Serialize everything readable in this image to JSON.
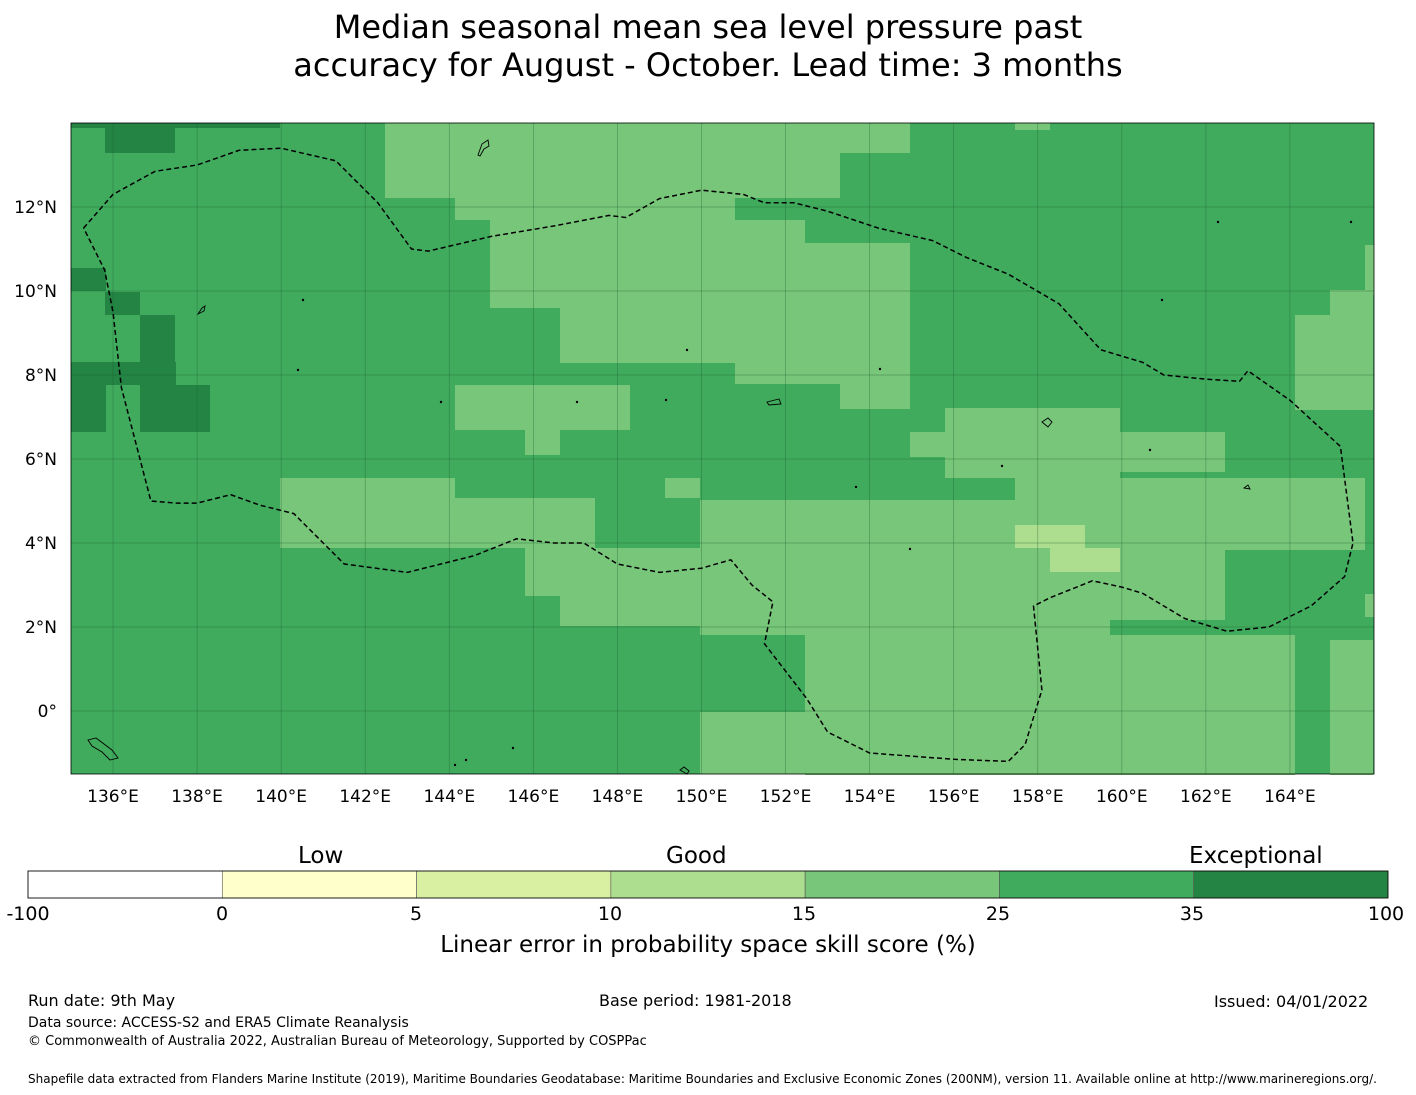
{
  "title_lines": [
    "Median seasonal mean sea level pressure past",
    "accuracy for August - October. Lead time: 3 months"
  ],
  "map": {
    "lon_range": [
      135,
      166
    ],
    "lat_range": [
      -1.5,
      14
    ],
    "lon_ticks": [
      {
        "value": 136,
        "label": "136°E"
      },
      {
        "value": 138,
        "label": "138°E"
      },
      {
        "value": 140,
        "label": "140°E"
      },
      {
        "value": 142,
        "label": "142°E"
      },
      {
        "value": 144,
        "label": "144°E"
      },
      {
        "value": 146,
        "label": "146°E"
      },
      {
        "value": 148,
        "label": "148°E"
      },
      {
        "value": 150,
        "label": "150°E"
      },
      {
        "value": 152,
        "label": "152°E"
      },
      {
        "value": 154,
        "label": "154°E"
      },
      {
        "value": 156,
        "label": "156°E"
      },
      {
        "value": 158,
        "label": "158°E"
      },
      {
        "value": 160,
        "label": "160°E"
      },
      {
        "value": 162,
        "label": "162°E"
      },
      {
        "value": 164,
        "label": "164°E"
      }
    ],
    "lat_ticks": [
      {
        "value": 12,
        "label": "12°N"
      },
      {
        "value": 10,
        "label": "10°N"
      },
      {
        "value": 8,
        "label": "8°N"
      },
      {
        "value": 6,
        "label": "6°N"
      },
      {
        "value": 4,
        "label": "4°N"
      },
      {
        "value": 2,
        "label": "2°N"
      },
      {
        "value": 0,
        "label": "0°"
      }
    ],
    "boundary_lonlat": [
      [
        135.3,
        11.5
      ],
      [
        136.0,
        12.3
      ],
      [
        137.0,
        12.85
      ],
      [
        138.0,
        13.0
      ],
      [
        139.0,
        13.35
      ],
      [
        140.0,
        13.4
      ],
      [
        141.3,
        13.1
      ],
      [
        142.3,
        12.1
      ],
      [
        143.1,
        11.0
      ],
      [
        143.5,
        10.95
      ],
      [
        145.0,
        11.3
      ],
      [
        146.5,
        11.55
      ],
      [
        147.8,
        11.8
      ],
      [
        148.2,
        11.75
      ],
      [
        149.0,
        12.2
      ],
      [
        150.0,
        12.4
      ],
      [
        151.0,
        12.3
      ],
      [
        151.5,
        12.1
      ],
      [
        152.2,
        12.1
      ],
      [
        153.0,
        11.9
      ],
      [
        154.2,
        11.5
      ],
      [
        155.5,
        11.2
      ],
      [
        156.3,
        10.8
      ],
      [
        157.3,
        10.4
      ],
      [
        158.5,
        9.7
      ],
      [
        159.5,
        8.6
      ],
      [
        160.5,
        8.3
      ],
      [
        161.0,
        8.0
      ],
      [
        162.0,
        7.9
      ],
      [
        162.8,
        7.85
      ],
      [
        163.0,
        8.1
      ],
      [
        164.0,
        7.4
      ],
      [
        165.2,
        6.3
      ],
      [
        165.5,
        4.0
      ],
      [
        165.3,
        3.2
      ],
      [
        164.5,
        2.5
      ],
      [
        163.5,
        2.0
      ],
      [
        162.5,
        1.9
      ],
      [
        161.5,
        2.2
      ],
      [
        160.5,
        2.8
      ],
      [
        160.0,
        2.95
      ],
      [
        159.3,
        3.1
      ],
      [
        158.3,
        2.7
      ],
      [
        157.9,
        2.5
      ],
      [
        158.1,
        0.5
      ],
      [
        157.7,
        -0.8
      ],
      [
        157.3,
        -1.2
      ],
      [
        156.0,
        -1.15
      ],
      [
        154.0,
        -1.0
      ],
      [
        153.0,
        -0.5
      ],
      [
        152.5,
        0.3
      ],
      [
        151.5,
        1.6
      ],
      [
        151.7,
        2.6
      ],
      [
        151.2,
        3.0
      ],
      [
        150.7,
        3.6
      ],
      [
        150.0,
        3.4
      ],
      [
        149.0,
        3.3
      ],
      [
        148.0,
        3.5
      ],
      [
        147.2,
        4.0
      ],
      [
        146.5,
        4.0
      ],
      [
        145.6,
        4.1
      ],
      [
        144.6,
        3.7
      ],
      [
        143.0,
        3.3
      ],
      [
        141.5,
        3.5
      ],
      [
        140.3,
        4.7
      ],
      [
        139.5,
        4.9
      ],
      [
        138.8,
        5.15
      ],
      [
        138.0,
        4.95
      ],
      [
        137.5,
        4.95
      ],
      [
        136.9,
        5.0
      ],
      [
        136.2,
        7.7
      ],
      [
        136.0,
        9.5
      ],
      [
        135.8,
        10.5
      ],
      [
        135.3,
        11.5
      ]
    ]
  },
  "legend": {
    "categories": [
      {
        "label": "Low",
        "value": 2.5
      },
      {
        "label": "Good",
        "value": 15
      },
      {
        "label": "Exceptional",
        "value": 35
      }
    ],
    "ticks": [
      "-100",
      "0",
      "5",
      "10",
      "15",
      "25",
      "35",
      "100"
    ],
    "colors": [
      "#ffffff",
      "#ffffcc",
      "#d9f0a3",
      "#addd8e",
      "#78c679",
      "#41ab5d",
      "#238443"
    ],
    "axis_title": "Linear error in probability space skill score (%)"
  },
  "footer": {
    "run_date": "Run date: 9th May",
    "base_period": "Base period: 1981-2018",
    "issued": "Issued: 04/01/2022",
    "data_source": "Data source: ACCESS-S2 and ERA5 Climate Reanalysis",
    "copyright": "© Commonwealth of Australia 2022, Australian Bureau of Meteorology, Supported by COSPPac",
    "shapefile": "Shapefile data extracted from Flanders Marine Institute (2019), Maritime Boundaries Geodatabase: Maritime Boundaries and Exclusive Economic Zones (200NM), version 11. Available online at http://www.marineregions.org/."
  }
}
